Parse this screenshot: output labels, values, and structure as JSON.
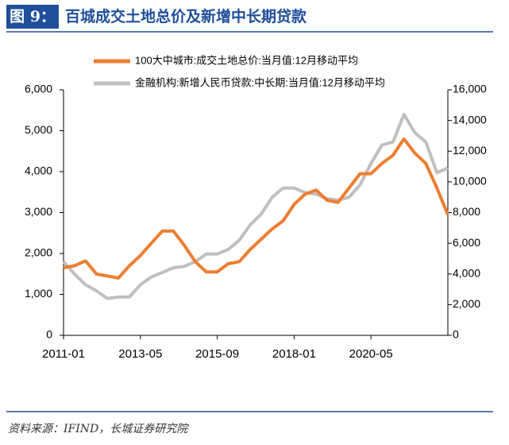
{
  "header": {
    "figure_label": "图 9：",
    "title": "百城成交土地总价及新增中长期贷款"
  },
  "source": "资料来源：IFIND，长城证券研究院",
  "chart_data": {
    "type": "line",
    "x": [
      "2011-01",
      "2011-05",
      "2011-09",
      "2012-01",
      "2012-05",
      "2012-09",
      "2013-01",
      "2013-05",
      "2013-09",
      "2014-01",
      "2014-05",
      "2014-09",
      "2015-01",
      "2015-05",
      "2015-09",
      "2016-01",
      "2016-05",
      "2016-09",
      "2017-01",
      "2017-05",
      "2017-09",
      "2018-01",
      "2018-05",
      "2018-09",
      "2019-01",
      "2019-05",
      "2019-09",
      "2020-01",
      "2020-05",
      "2020-09",
      "2021-01",
      "2021-05",
      "2021-09",
      "2022-01",
      "2022-05",
      "2022-09"
    ],
    "xticks": [
      "2011-01",
      "2013-05",
      "2015-09",
      "2018-01",
      "2020-05"
    ],
    "series": [
      {
        "name": "100大中城市:成交土地总价:当月值:12月移动平均",
        "color": "#ED7D31",
        "values": [
          1650,
          1700,
          1820,
          1500,
          1450,
          1400,
          1700,
          1950,
          2250,
          2550,
          2550,
          2200,
          1800,
          1550,
          1550,
          1750,
          1800,
          2100,
          2350,
          2600,
          2800,
          3200,
          3450,
          3550,
          3300,
          3250,
          3600,
          3950,
          3950,
          4200,
          4400,
          4800,
          4450,
          4200,
          3600,
          2950
        ]
      },
      {
        "name": "金融机构:新增人民币贷款:中长期:当月值:12月移动平均",
        "color": "#BFBFBF",
        "axis": "y2",
        "values": [
          4800,
          4000,
          3300,
          2900,
          2400,
          2500,
          2500,
          3300,
          3800,
          4100,
          4400,
          4500,
          4800,
          5300,
          5300,
          5600,
          6200,
          7200,
          7900,
          9000,
          9600,
          9600,
          9300,
          9200,
          8900,
          8800,
          9000,
          9800,
          11200,
          12400,
          12600,
          14400,
          13200,
          12600,
          10600,
          10900
        ]
      }
    ],
    "ylim": [
      0,
      6000
    ],
    "yticks": [
      0,
      {
        "value": 1000,
        "label": "1,000"
      },
      {
        "value": 2000,
        "label": "2,000"
      },
      {
        "value": 3000,
        "label": "3,000"
      },
      {
        "value": 4000,
        "label": "4,000"
      },
      {
        "value": 5000,
        "label": "5,000"
      },
      {
        "value": 6000,
        "label": "6,000"
      }
    ],
    "y2lim": [
      0,
      16000
    ],
    "y2ticks": [
      0,
      {
        "value": 2000,
        "label": "2,000"
      },
      {
        "value": 4000,
        "label": "4,000"
      },
      {
        "value": 6000,
        "label": "6,000"
      },
      {
        "value": 8000,
        "label": "8,000"
      },
      {
        "value": 10000,
        "label": "10,000"
      },
      {
        "value": 12000,
        "label": "12,000"
      },
      {
        "value": 14000,
        "label": "14,000"
      },
      {
        "value": 16000,
        "label": "16,000"
      }
    ],
    "grid": false
  }
}
